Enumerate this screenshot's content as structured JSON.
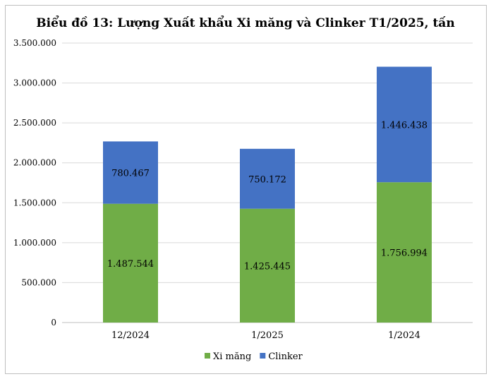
{
  "chart_data": {
    "type": "bar",
    "stacked": true,
    "title": "Biểu đồ 13: Lượng Xuất khẩu Xi măng và Clinker T1/2025, tấn",
    "xlabel": "",
    "ylabel": "",
    "categories": [
      "12/2024",
      "1/2025",
      "1/2024"
    ],
    "series": [
      {
        "name": "Xi măng",
        "color": "#70AD47",
        "values": [
          1487544,
          1425445,
          1756994
        ],
        "labels": [
          "1.487.544",
          "1.425.445",
          "1.756.994"
        ]
      },
      {
        "name": "Clinker",
        "color": "#4472C4",
        "values": [
          780467,
          750172,
          1446438
        ],
        "labels": [
          "780.467",
          "750.172",
          "1.446.438"
        ]
      }
    ],
    "ylim": [
      0,
      3500000
    ],
    "yticks": [
      0,
      500000,
      1000000,
      1500000,
      2000000,
      2500000,
      3000000,
      3500000
    ],
    "ytick_labels": [
      "0",
      "500.000",
      "1.000.000",
      "1.500.000",
      "2.000.000",
      "2.500.000",
      "3.000.000",
      "3.500.000"
    ],
    "grid": true,
    "legend": "bottom"
  }
}
